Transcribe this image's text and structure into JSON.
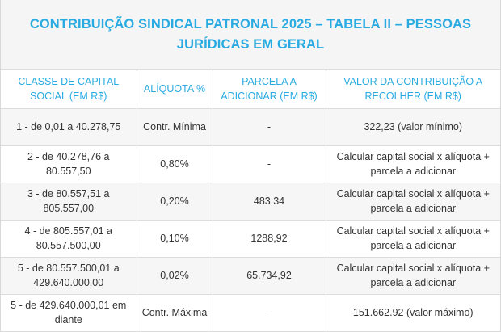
{
  "title": "CONTRIBUIÇÃO SINDICAL PATRONAL 2025 – TABELA II – PESSOAS JURÍDICAS EM GERAL",
  "headers": [
    "CLASSE DE CAPITAL SOCIAL (EM R$)",
    "ALÍQUOTA %",
    "PARCELA A ADICIONAR (EM R$)",
    "VALOR DA CONTRIBUIÇÃO A RECOLHER (EM R$)"
  ],
  "rows": [
    {
      "classe": "1 - de 0,01 a 40.278,75",
      "aliquota": "Contr. Mínima",
      "parcela": "-",
      "valor": "322,23 (valor mínimo)"
    },
    {
      "classe": "2 - de 40.278,76 a 80.557,50",
      "aliquota": "0,80%",
      "parcela": "-",
      "valor": "Calcular capital social x alíquota + parcela a adicionar"
    },
    {
      "classe": "3 - de 80.557,51 a 805.557,00",
      "aliquota": "0,20%",
      "parcela": "483,34",
      "valor": "Calcular capital social x alíquota + parcela a adicionar"
    },
    {
      "classe": "4 - de 805.557,01 a 80.557.500,00",
      "aliquota": "0,10%",
      "parcela": "1288,92",
      "valor": "Calcular capital social x alíquota + parcela a adicionar"
    },
    {
      "classe": "5 - de 80.557.500,01 a 429.640.000,00",
      "aliquota": "0,02%",
      "parcela": "65.734,92",
      "valor": "Calcular capital social x alíquota + parcela a adicionar"
    },
    {
      "classe": "5 - de 429.640.000,01 em diante",
      "aliquota": "Contr. Máxima",
      "parcela": "-",
      "valor": "151.662.92 (valor máximo)"
    }
  ],
  "colors": {
    "accent": "#29abe2",
    "header_bg": "#f5f5f5",
    "alt_row_bg": "#f6f6f6",
    "border": "#dcdcdc",
    "text": "#333333"
  }
}
